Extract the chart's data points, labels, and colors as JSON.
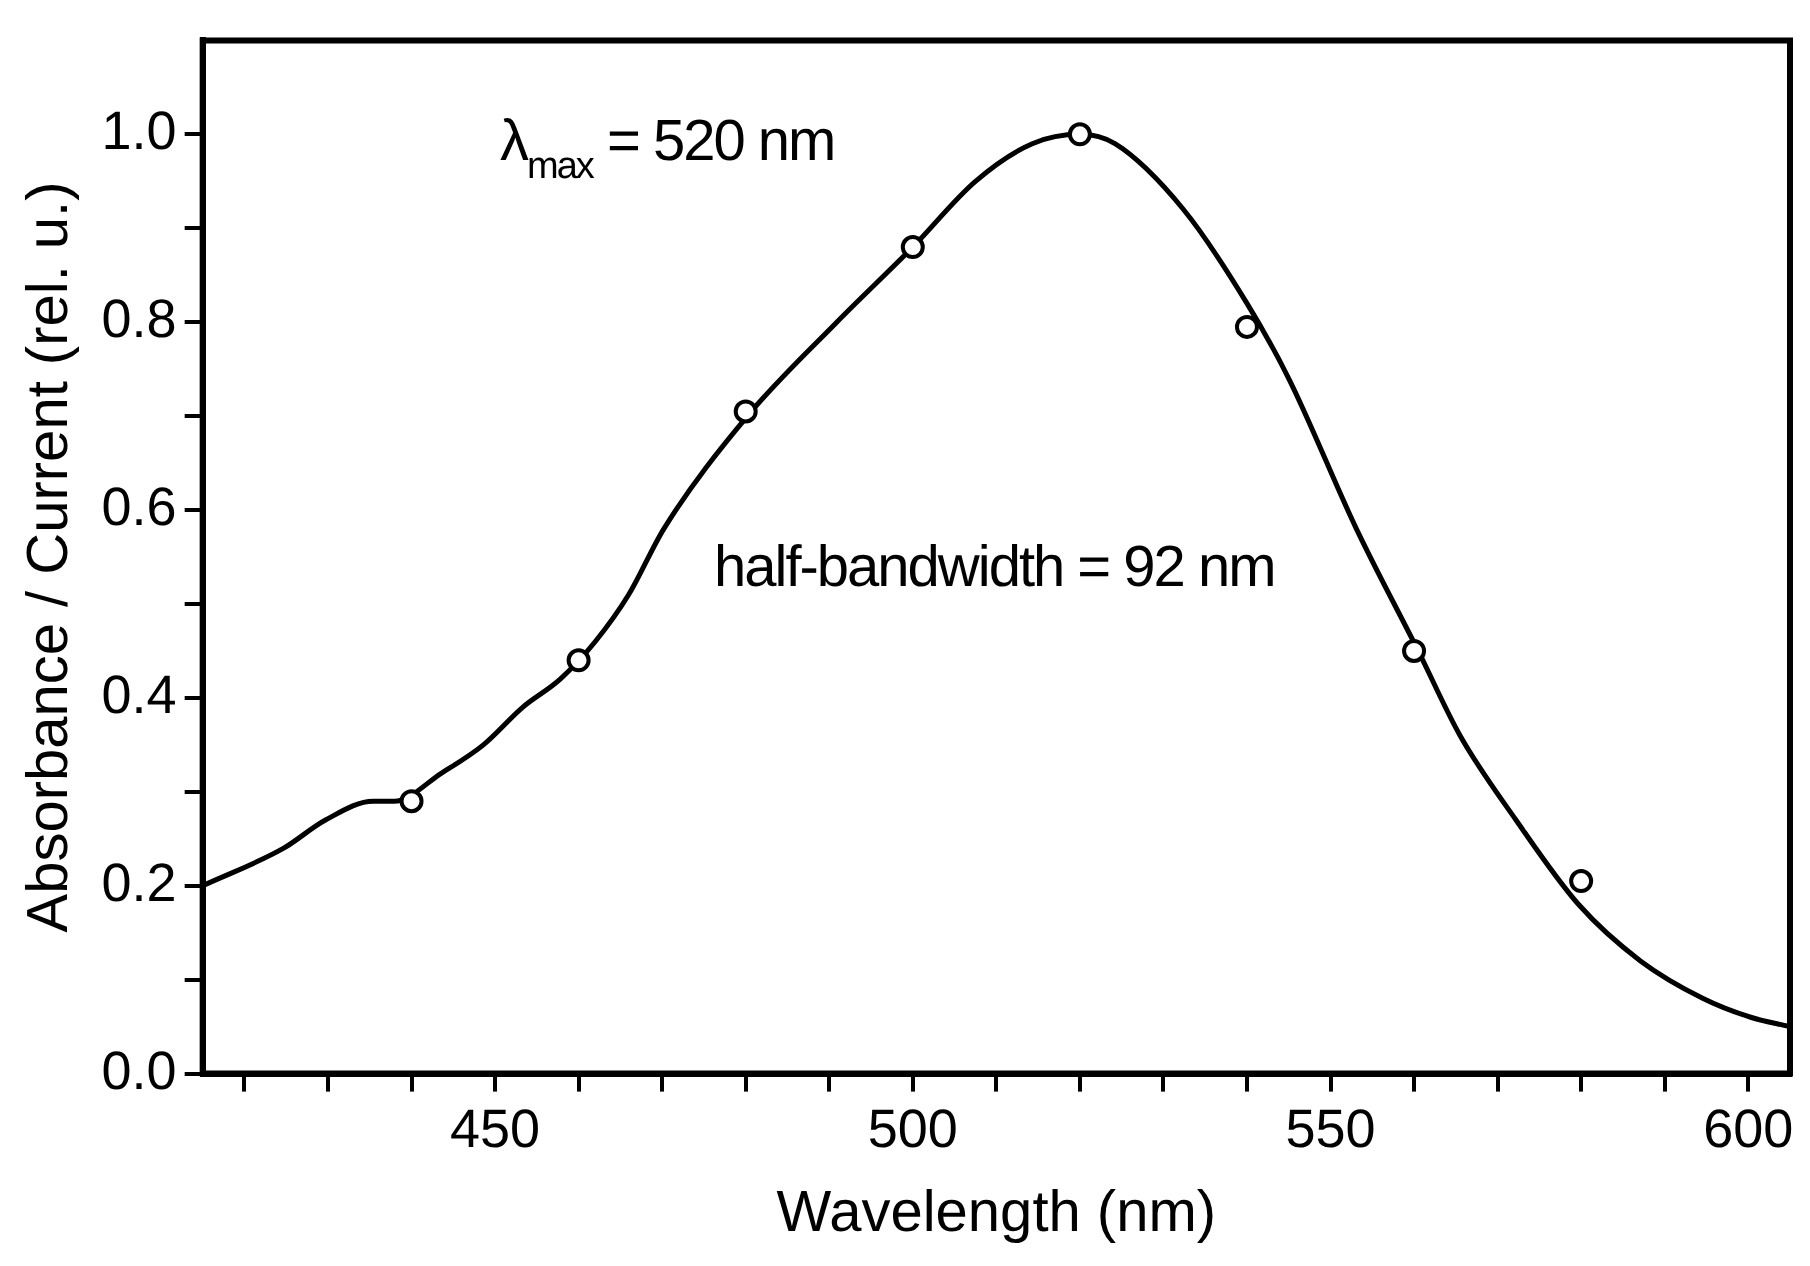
{
  "chart_data": {
    "type": "line",
    "xlabel": "Wavelength (nm)",
    "ylabel": "Absorbance / Current (rel. u.)",
    "xlim": [
      415,
      605
    ],
    "ylim": [
      0,
      1.1
    ],
    "xticks": [
      {
        "value": 420,
        "label": null
      },
      {
        "value": 430,
        "label": null
      },
      {
        "value": 440,
        "label": null
      },
      450,
      {
        "value": 460,
        "label": null
      },
      {
        "value": 470,
        "label": null
      },
      {
        "value": 480,
        "label": null
      },
      {
        "value": 490,
        "label": null
      },
      500,
      {
        "value": 510,
        "label": null
      },
      {
        "value": 520,
        "label": null
      },
      {
        "value": 530,
        "label": null
      },
      {
        "value": 540,
        "label": null
      },
      550,
      {
        "value": 560,
        "label": null
      },
      {
        "value": 570,
        "label": null
      },
      {
        "value": 580,
        "label": null
      },
      {
        "value": 590,
        "label": null
      },
      600
    ],
    "yticks": [
      {
        "value": 0,
        "label": "0.0"
      },
      {
        "value": 0.1,
        "label": null
      },
      {
        "value": 0.2,
        "label": "0.2"
      },
      {
        "value": 0.3,
        "label": null
      },
      {
        "value": 0.4,
        "label": "0.4"
      },
      {
        "value": 0.5,
        "label": null
      },
      {
        "value": 0.6,
        "label": "0.6"
      },
      {
        "value": 0.7,
        "label": null
      },
      {
        "value": 0.8,
        "label": "0.8"
      },
      {
        "value": 0.9,
        "label": null
      },
      {
        "value": 1.0,
        "label": "1.0"
      }
    ],
    "grid": false,
    "legend": false,
    "annotations": [
      "λ$_{max}$ = 520 nm",
      "half-bandwidth = 92 nm"
    ],
    "series": [
      {
        "type": "line",
        "color": "#000000",
        "marker": "none",
        "line_style": "solid",
        "x": [
          415,
          424.7,
          429.7,
          435.4,
          437.9,
          443.6,
          448.6,
          453.3,
          457.8,
          462,
          466,
          470.2,
          480.2,
          490.9,
          500,
          507.5,
          514.3,
          520,
          524.2,
          532.4,
          540,
          545,
          553.1,
          560.5,
          565.5,
          572.2,
          579.7,
          587.1,
          594.6,
          600.3,
          605
        ],
        "values": [
          0.2,
          0.24,
          0.27,
          0.29,
          0.29,
          0.32,
          0.35,
          0.39,
          0.42,
          0.46,
          0.51,
          0.58,
          0.7,
          0.8,
          0.88,
          0.95,
          0.99,
          1.0,
          0.99,
          0.92,
          0.82,
          0.74,
          0.58,
          0.45,
          0.36,
          0.27,
          0.18,
          0.12,
          0.08,
          0.06,
          0.05
        ]
      },
      {
        "type": "scatter",
        "color": "#000000",
        "marker": "circle",
        "x": [
          440,
          460,
          480,
          500,
          520,
          540,
          560,
          580
        ],
        "values": [
          0.29,
          0.44,
          0.705,
          0.88,
          1.0,
          0.795,
          0.45,
          0.205
        ]
      }
    ]
  }
}
